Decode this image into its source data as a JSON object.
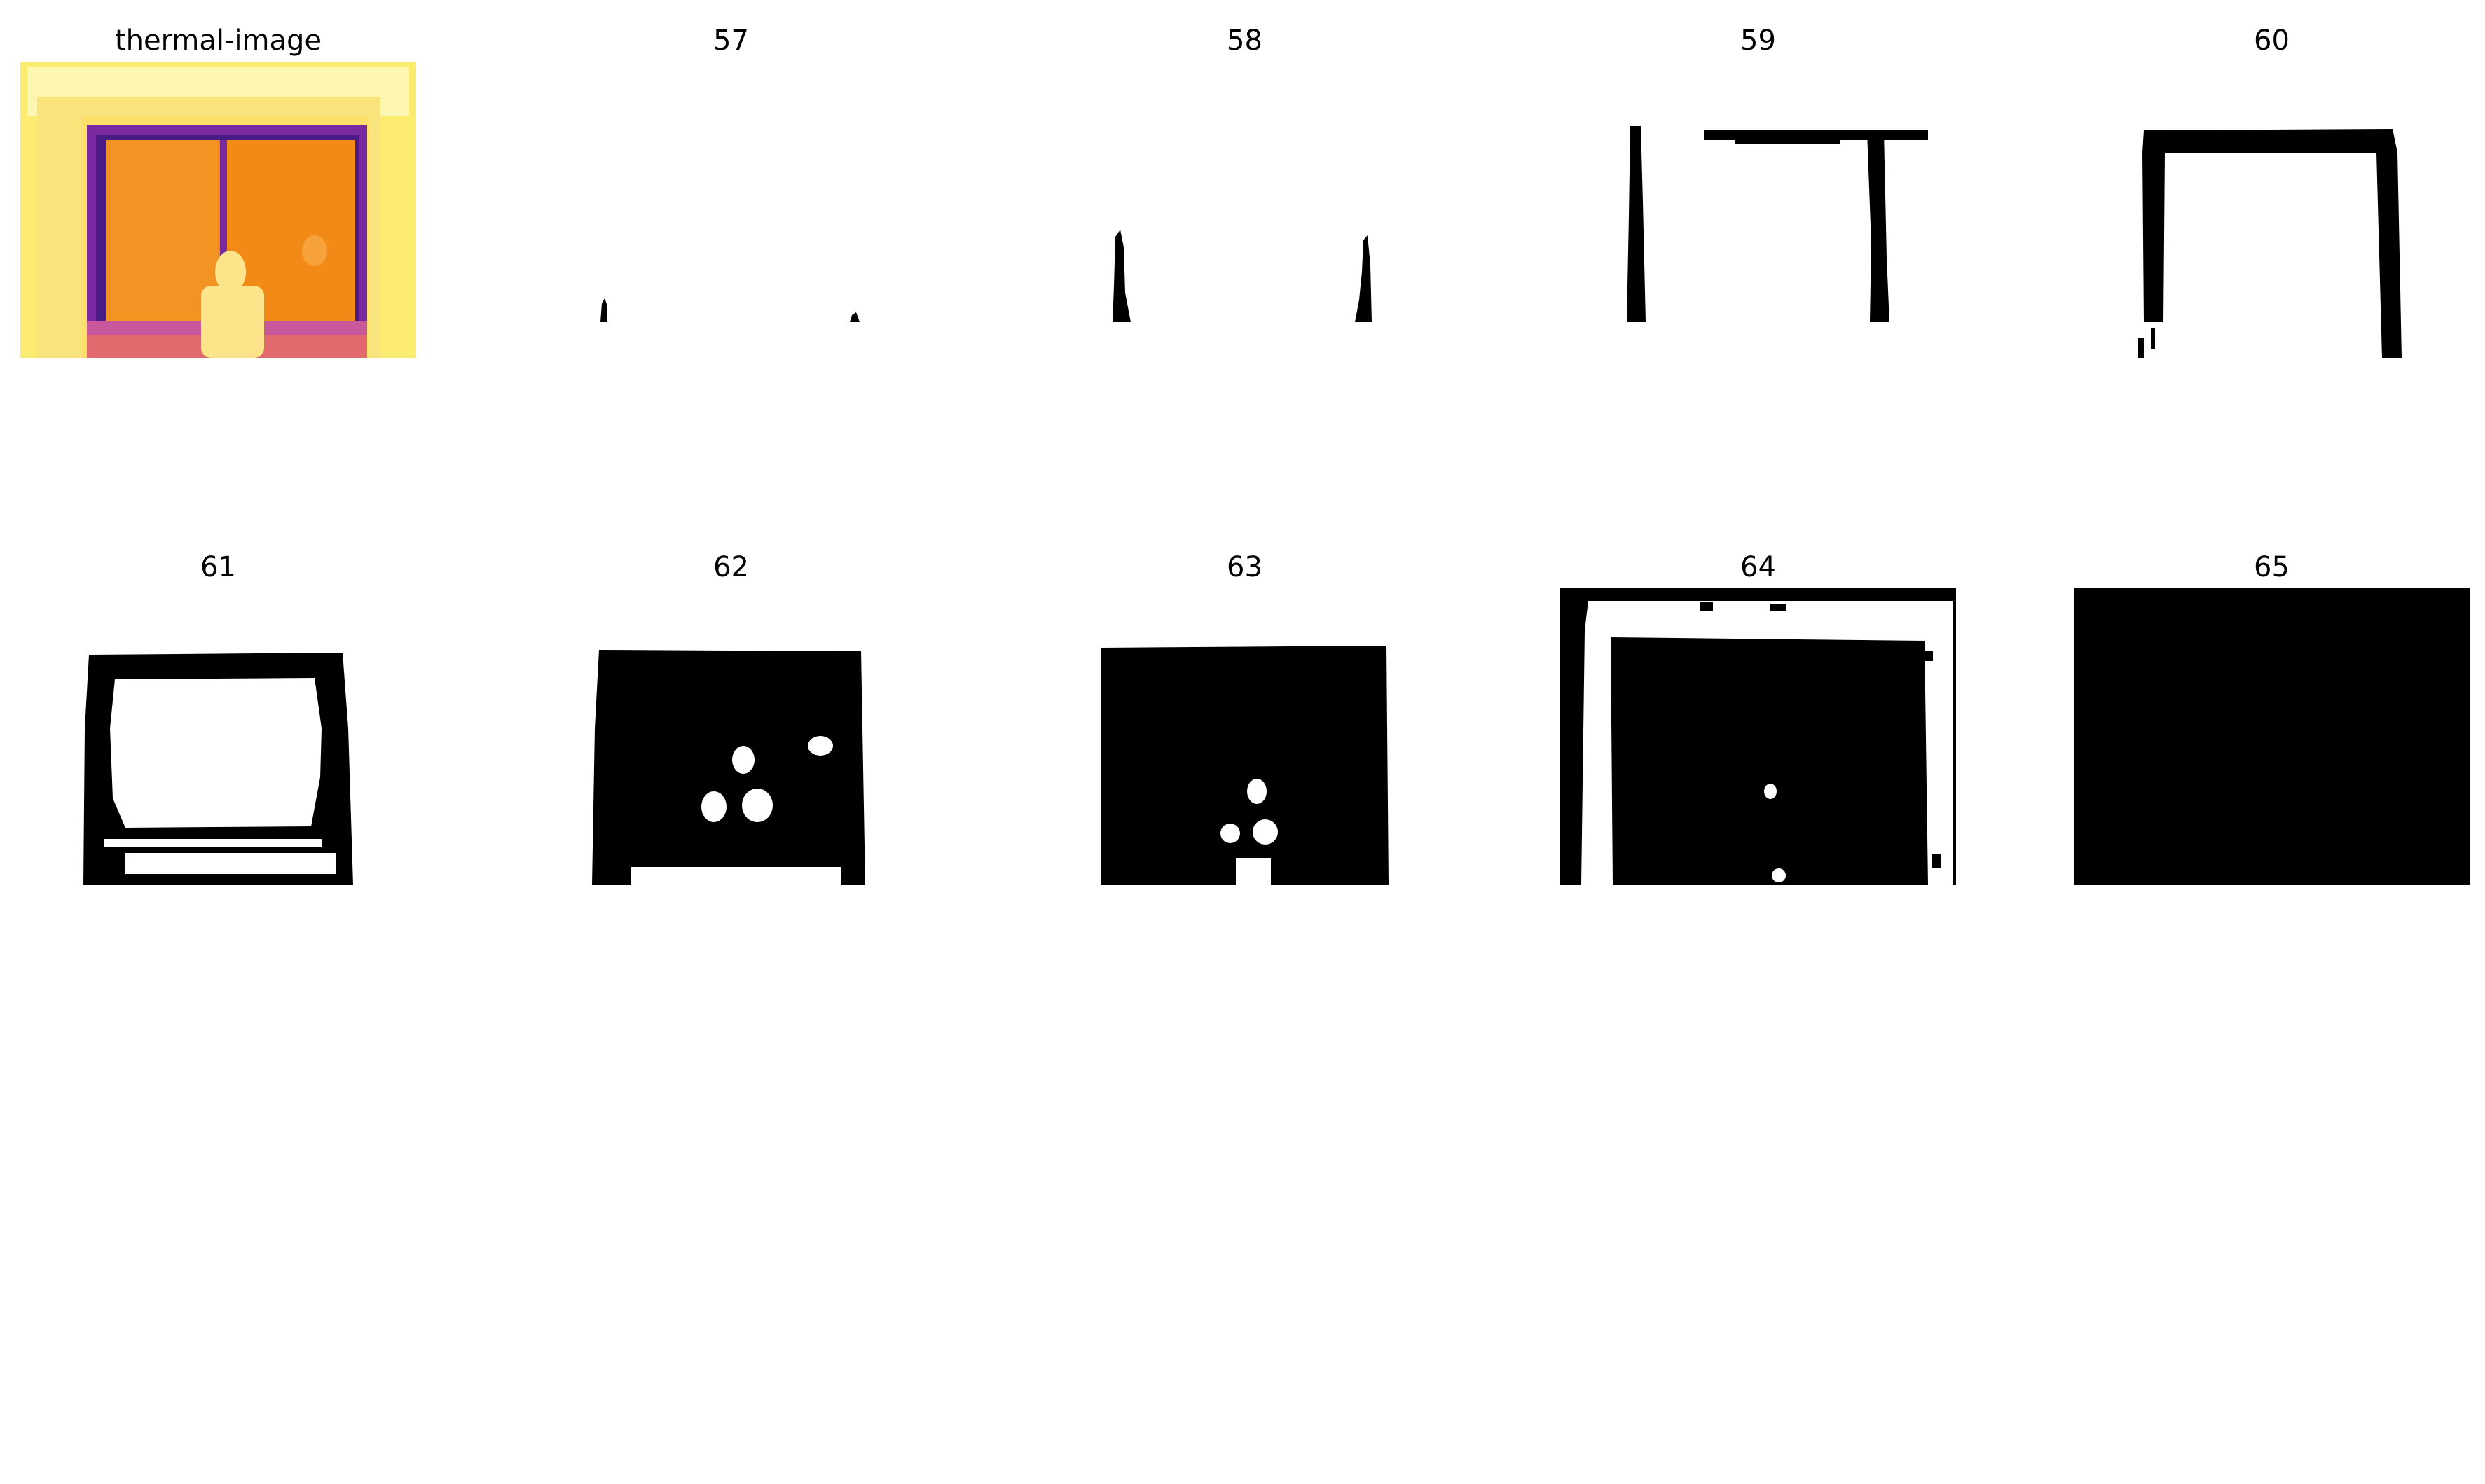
{
  "figure": {
    "panels": [
      {
        "title": "thermal-image",
        "kind": "thermal"
      },
      {
        "title": "57",
        "kind": "mask"
      },
      {
        "title": "58",
        "kind": "mask"
      },
      {
        "title": "59",
        "kind": "mask"
      },
      {
        "title": "60",
        "kind": "mask"
      },
      {
        "title": "61",
        "kind": "mask"
      },
      {
        "title": "62",
        "kind": "mask"
      },
      {
        "title": "63",
        "kind": "mask"
      },
      {
        "title": "64",
        "kind": "mask"
      },
      {
        "title": "65",
        "kind": "mask"
      }
    ]
  },
  "colors": {
    "thermal_outer": "#fbeb6e",
    "thermal_light": "#fdf6b0",
    "thermal_frame": "#7a2aa0",
    "thermal_frame_dark": "#4a1c86",
    "thermal_glass": "#f28a18",
    "thermal_glass_light": "#f7a23a",
    "thermal_figure": "#fde38a",
    "mask_fg": "#000000",
    "mask_bg": "#ffffff"
  }
}
